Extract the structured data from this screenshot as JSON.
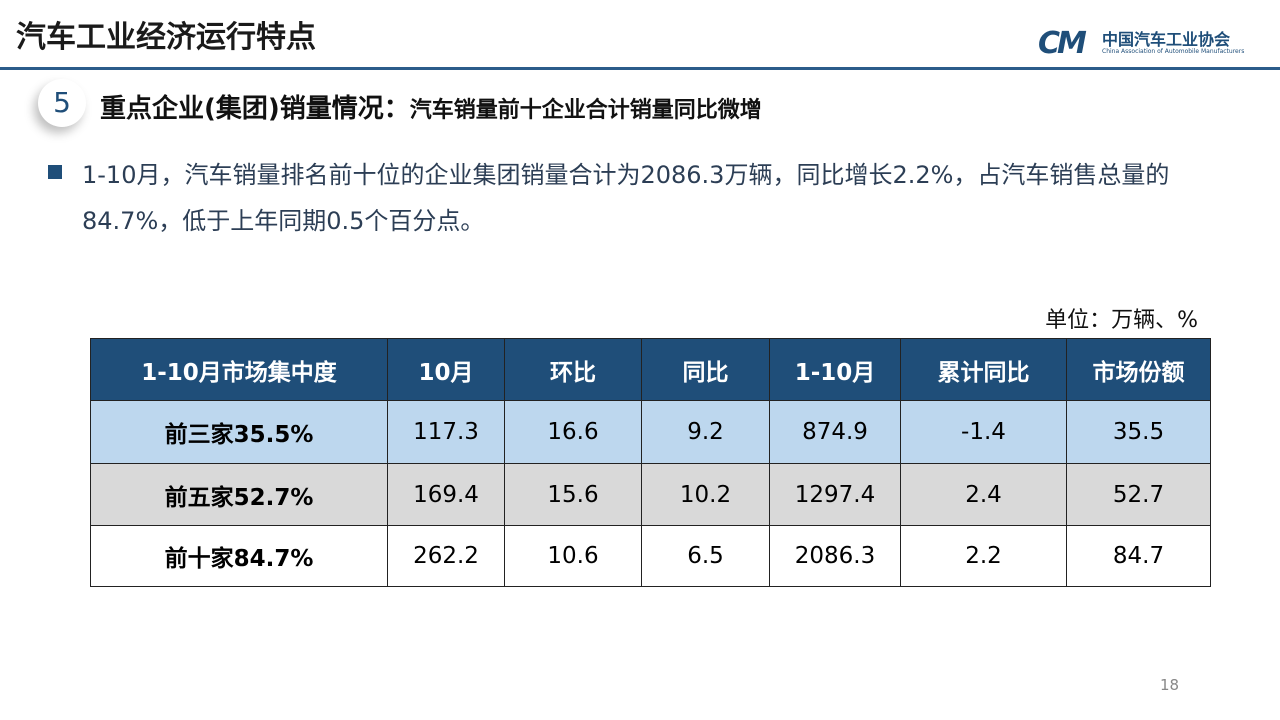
{
  "header": {
    "title": "汽车工业经济运行特点",
    "logo_cn": "中国汽车工业协会",
    "logo_en": "China Association of Automobile Manufacturers"
  },
  "section": {
    "number": "5",
    "title": "重点企业(集团)销量情况：",
    "subtitle": "汽车销量前十企业合计销量同比微增"
  },
  "bullet": "1-10月，汽车销量排名前十位的企业集团销量合计为2086.3万辆，同比增长2.2%，占汽车销售总量的84.7%，低于上年同期0.5个百分点。",
  "unit": "单位：万辆、%",
  "table": {
    "columns": [
      "1-10月市场集中度",
      "10月",
      "环比",
      "同比",
      "1-10月",
      "累计同比",
      "市场份额"
    ],
    "rows": [
      [
        "前三家35.5%",
        "117.3",
        "16.6",
        "9.2",
        "874.9",
        "-1.4",
        "35.5"
      ],
      [
        "前五家52.7%",
        "169.4",
        "15.6",
        "10.2",
        "1297.4",
        "2.4",
        "52.7"
      ],
      [
        "前十家84.7%",
        "262.2",
        "10.6",
        "6.5",
        "2086.3",
        "2.2",
        "84.7"
      ]
    ]
  },
  "page_number": "18"
}
